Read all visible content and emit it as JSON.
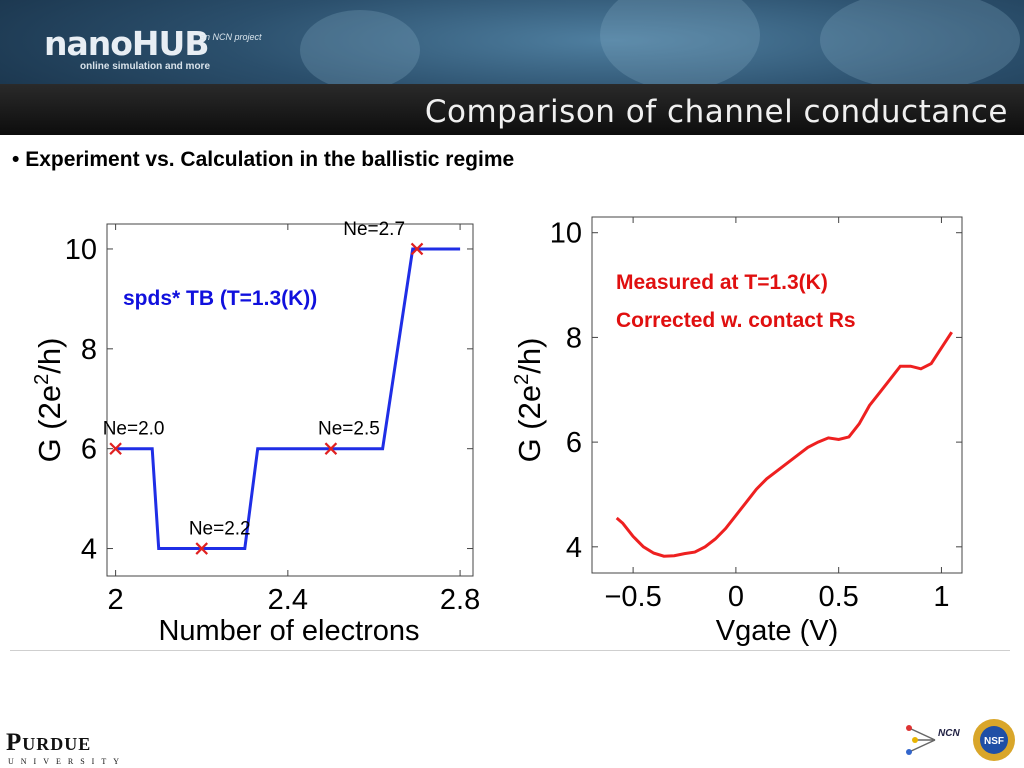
{
  "header": {
    "logo_text": "nanoHUB",
    "logo_tagline": "online simulation and more",
    "logo_project": "an NCN project",
    "page_title": "Comparison of channel conductance"
  },
  "bullet_text": "Experiment vs. Calculation in the ballistic regime",
  "chart_data": [
    {
      "type": "line",
      "title": "",
      "xlabel": "Number of electrons",
      "ylabel": "G (2e²/h)",
      "xlim": [
        1.98,
        2.83
      ],
      "ylim": [
        3.45,
        10.5
      ],
      "xticks": [
        2,
        2.4,
        2.8
      ],
      "xtick_labels": [
        "2",
        "2.4",
        "2.8"
      ],
      "yticks": [
        4,
        6,
        8,
        10
      ],
      "ytick_labels": [
        "4",
        "6",
        "8",
        "10"
      ],
      "series": [
        {
          "color": "#1f2ee6",
          "x": [
            2.0,
            2.085,
            2.1,
            2.3,
            2.33,
            2.6,
            2.62,
            2.69,
            2.8
          ],
          "y": [
            6,
            6,
            4,
            4,
            6,
            6,
            6,
            10,
            10
          ]
        }
      ],
      "markers": [
        {
          "x": 2.0,
          "y": 6,
          "label": "Ne=2.0"
        },
        {
          "x": 2.2,
          "y": 4,
          "label": "Ne=2.2"
        },
        {
          "x": 2.5,
          "y": 6,
          "label": "Ne=2.5"
        },
        {
          "x": 2.7,
          "y": 10,
          "label": "Ne=2.7"
        }
      ],
      "marker_color": "#e02020",
      "annotation": {
        "text": "spds* TB (T=1.3(K))",
        "color": "#1010dd"
      }
    },
    {
      "type": "line",
      "title": "",
      "xlabel": "Vgate (V)",
      "ylabel": "G (2e²/h)",
      "xlim": [
        -0.7,
        1.1
      ],
      "ylim": [
        3.5,
        10.3
      ],
      "xticks": [
        -0.5,
        0,
        0.5,
        1
      ],
      "xtick_labels": [
        "−0.5",
        "0",
        "0.5",
        "1"
      ],
      "yticks": [
        4,
        6,
        8,
        10
      ],
      "ytick_labels": [
        "4",
        "6",
        "8",
        "10"
      ],
      "series": [
        {
          "color": "#ee2020",
          "x": [
            -0.58,
            -0.55,
            -0.5,
            -0.45,
            -0.4,
            -0.35,
            -0.3,
            -0.25,
            -0.2,
            -0.15,
            -0.1,
            -0.05,
            0.0,
            0.05,
            0.1,
            0.15,
            0.2,
            0.25,
            0.3,
            0.35,
            0.4,
            0.45,
            0.5,
            0.55,
            0.6,
            0.65,
            0.7,
            0.75,
            0.8,
            0.85,
            0.9,
            0.95,
            1.0,
            1.05
          ],
          "y": [
            4.55,
            4.45,
            4.2,
            4.0,
            3.88,
            3.82,
            3.83,
            3.87,
            3.9,
            4.0,
            4.15,
            4.35,
            4.6,
            4.85,
            5.1,
            5.3,
            5.45,
            5.6,
            5.75,
            5.9,
            6.0,
            6.08,
            6.05,
            6.1,
            6.35,
            6.7,
            6.95,
            7.2,
            7.45,
            7.45,
            7.4,
            7.5,
            7.8,
            8.1
          ]
        }
      ],
      "annotation_lines": [
        "Measured at T=1.3(K)",
        "Corrected w. contact Rs"
      ],
      "annotation_color": "#e01010"
    }
  ],
  "footer": {
    "university": "Purdue",
    "university_sub": "UNIVERSITY",
    "ncn_label": "NCN",
    "nsf_label": "NSF"
  }
}
